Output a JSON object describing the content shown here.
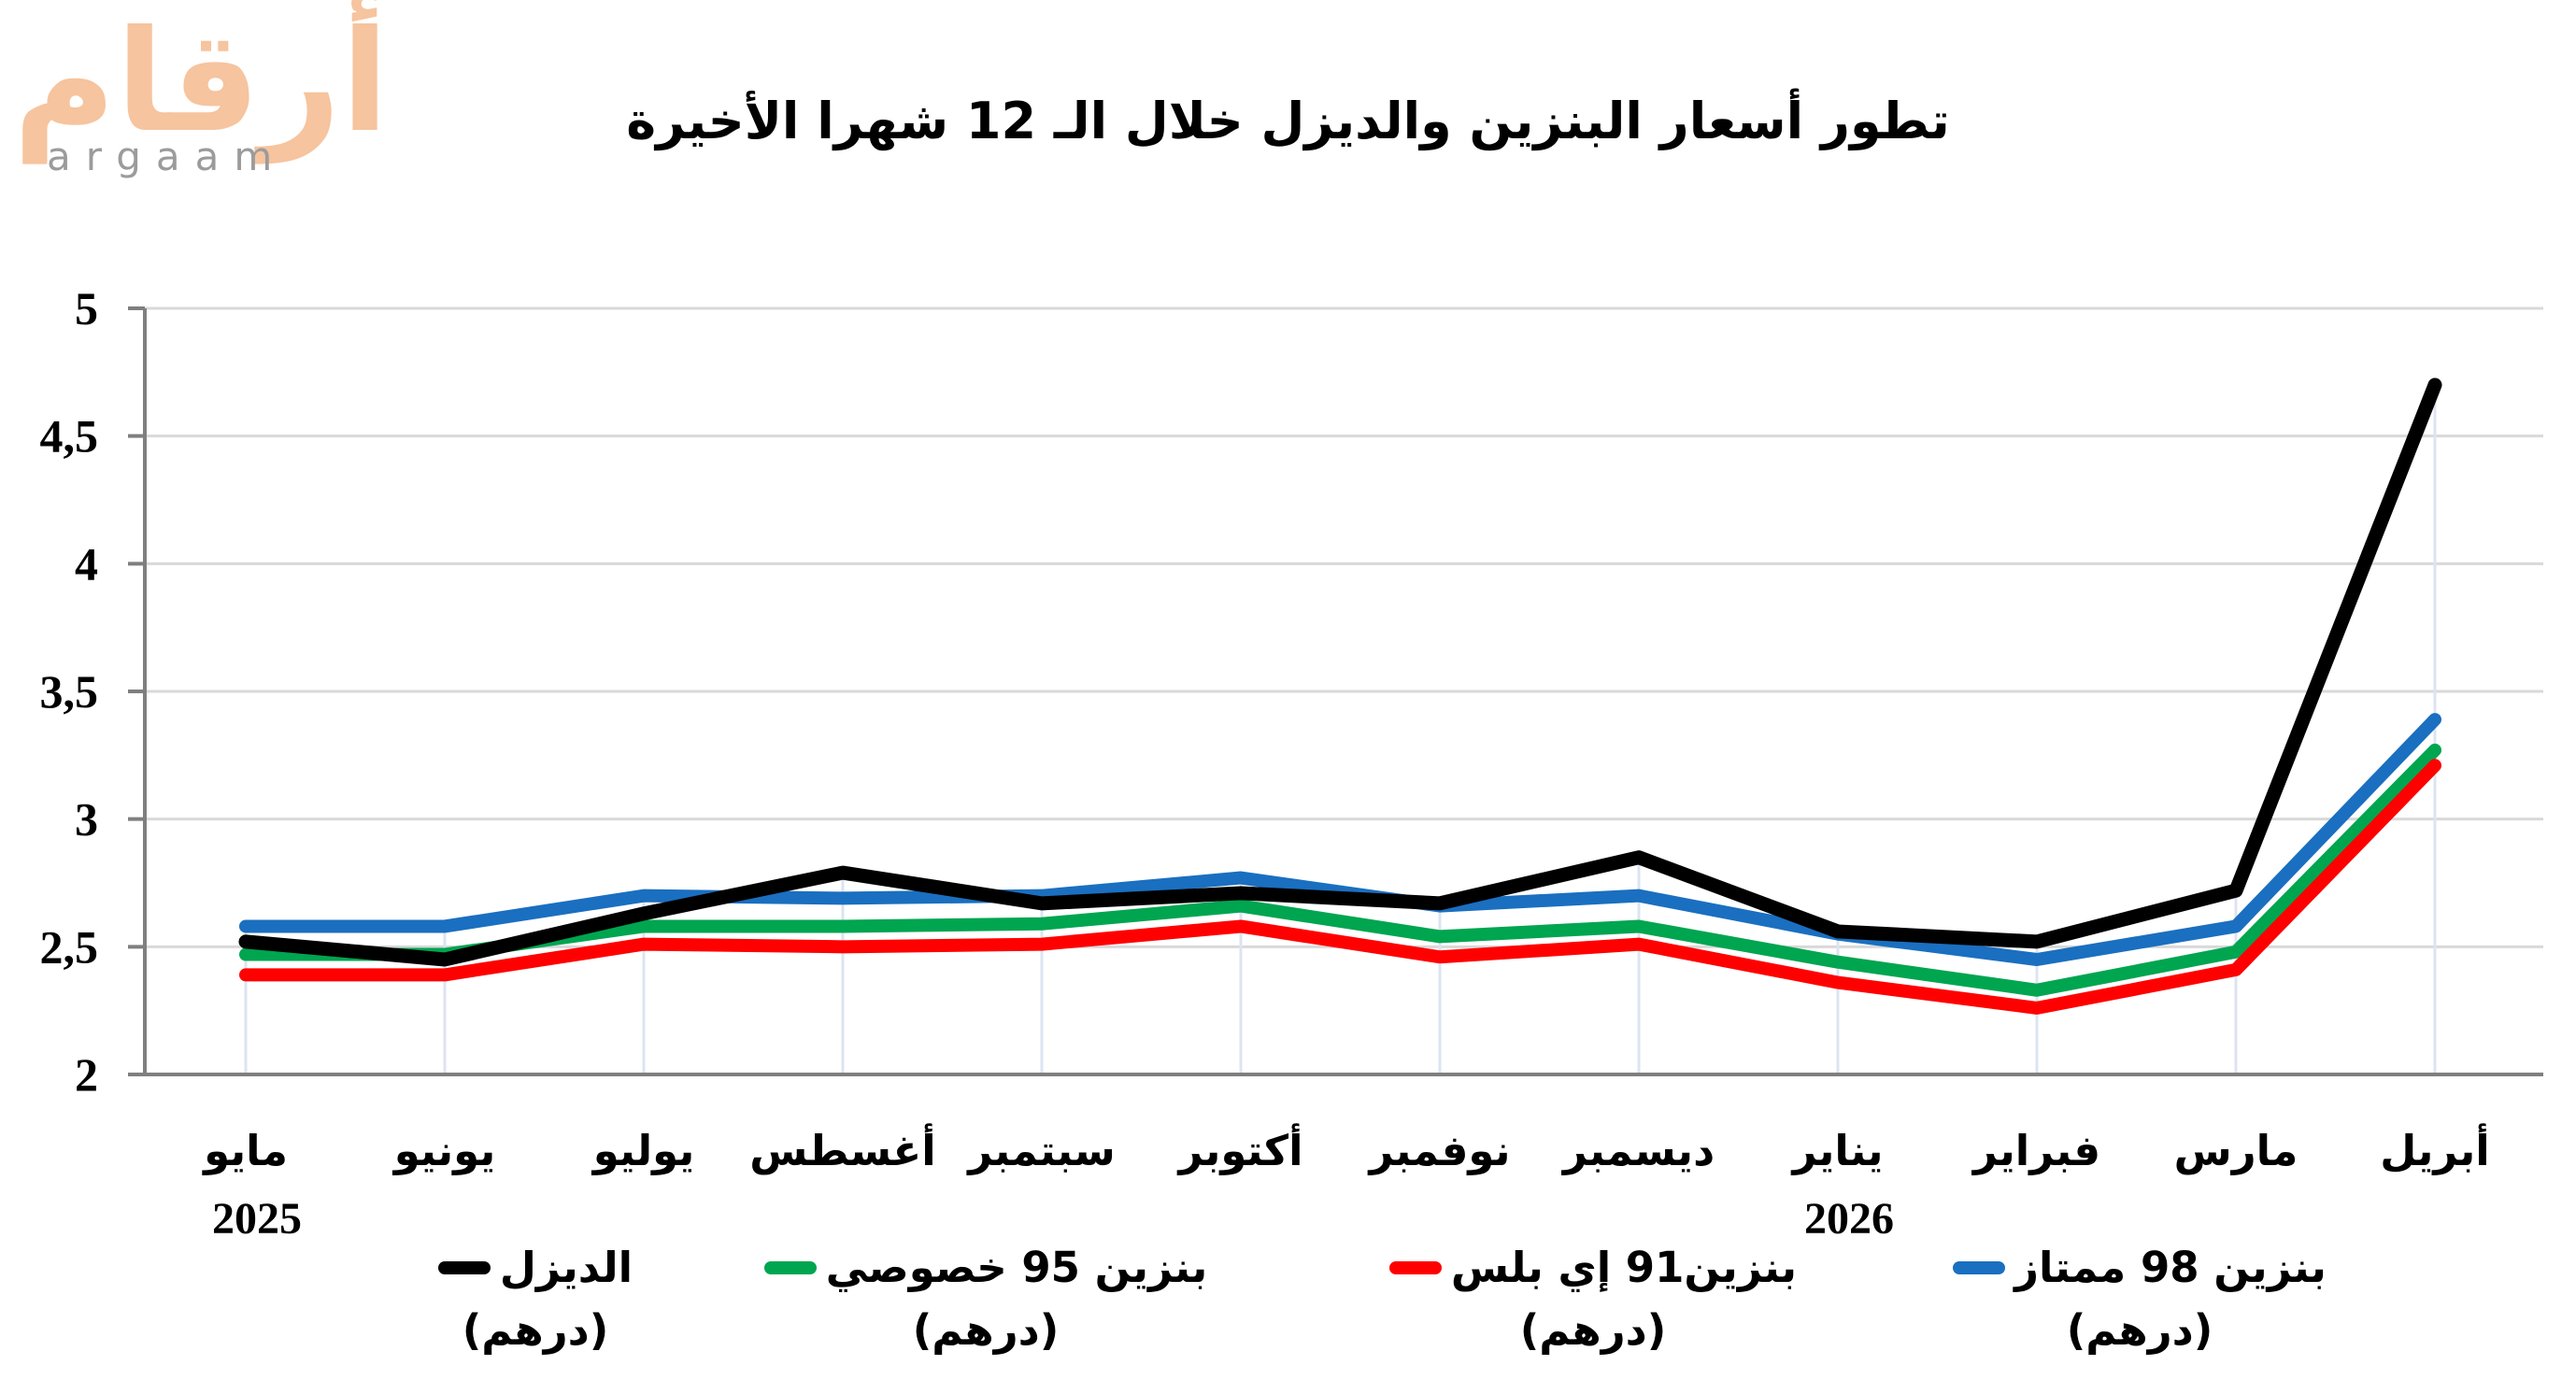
{
  "logo": {
    "brand_arabic": "أرقام",
    "brand_latin": "argaam",
    "arabic_color": "#F6C49E",
    "latin_color": "#9B9B9B"
  },
  "title": "تطور أسعار البنزين والديزل خلال الـ 12 شهرا الأخيرة",
  "chart_data": {
    "type": "line",
    "title": "تطور أسعار البنزين والديزل خلال الـ 12 شهرا الأخيرة",
    "categories": [
      "مايو",
      "يونيو",
      "يوليو",
      "أغسطس",
      "سبتمبر",
      "أكتوبر",
      "نوفمبر",
      "ديسمبر",
      "يناير",
      "فبراير",
      "مارس",
      "أبريل"
    ],
    "year_labels": [
      {
        "text": "2025",
        "category_index": 0
      },
      {
        "text": "2026",
        "category_index": 8
      }
    ],
    "series": [
      {
        "name": "الديزل",
        "unit": "(درهم)",
        "color": "#000000",
        "values": [
          2.52,
          2.45,
          2.63,
          2.79,
          2.67,
          2.71,
          2.67,
          2.85,
          2.56,
          2.52,
          2.72,
          4.7
        ]
      },
      {
        "name": "بنزين 95 خصوصي",
        "unit": "(درهم)",
        "color": "#00A550",
        "values": [
          2.47,
          2.47,
          2.58,
          2.58,
          2.59,
          2.66,
          2.54,
          2.58,
          2.44,
          2.33,
          2.48,
          3.27
        ]
      },
      {
        "name": "بنزين91 إي بلس",
        "unit": "(درهم)",
        "color": "#FF0000",
        "values": [
          2.39,
          2.39,
          2.51,
          2.5,
          2.51,
          2.58,
          2.46,
          2.51,
          2.36,
          2.26,
          2.41,
          3.21
        ]
      },
      {
        "name": "بنزين 98 ممتاز",
        "unit": "(درهم)",
        "color": "#1A6FC0",
        "values": [
          2.58,
          2.58,
          2.7,
          2.69,
          2.7,
          2.77,
          2.66,
          2.7,
          2.55,
          2.45,
          2.58,
          3.39
        ]
      }
    ],
    "ylim": [
      2,
      5
    ],
    "ytick_step": 0.5,
    "yticks": [
      {
        "value": 5,
        "label": "5"
      },
      {
        "value": 4.5,
        "label": "4,5"
      },
      {
        "value": 4,
        "label": "4"
      },
      {
        "value": 3.5,
        "label": "3,5"
      },
      {
        "value": 3,
        "label": "3"
      },
      {
        "value": 2.5,
        "label": "2,5"
      },
      {
        "value": 2,
        "label": "2"
      }
    ],
    "grid": {
      "horizontal": true,
      "vertical_drop_lines": true,
      "gridline_color": "#D9D9D9",
      "drop_line_color": "#DCE4F2",
      "axis_color": "#7F7F7F"
    },
    "legend_position": "bottom"
  }
}
